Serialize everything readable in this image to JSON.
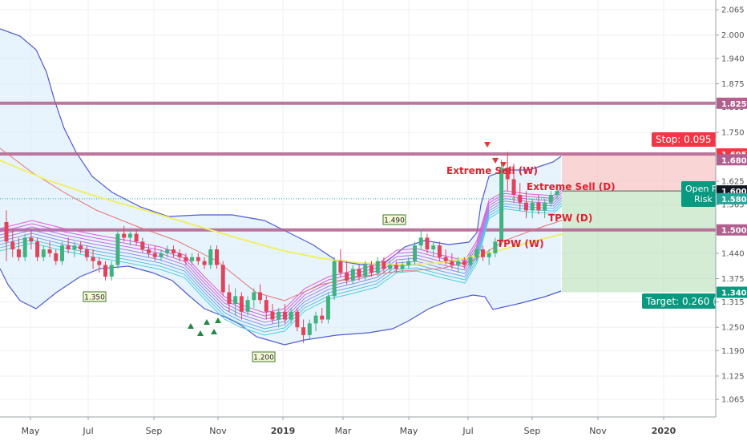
{
  "chart_data": {
    "type": "candlestick",
    "x_axis": {
      "labels": [
        "May",
        "Jul",
        "Sep",
        "Nov",
        "2019",
        "Mar",
        "May",
        "Jul",
        "Sep",
        "Nov",
        "2020"
      ]
    },
    "y_axis": {
      "ticks": [
        "2.065",
        "2.000",
        "1.940",
        "1.875",
        "1.815",
        "1.750",
        "1.690",
        "1.625",
        "1.565",
        "1.500",
        "1.440",
        "1.375",
        "1.315",
        "1.250",
        "1.190",
        "1.125",
        "1.065"
      ],
      "range": [
        1.02,
        2.09
      ]
    },
    "horizontal_levels": [
      {
        "label": "1.825",
        "value": 1.825,
        "color": "#b05f8e"
      },
      {
        "label": "1.695",
        "value": 1.695,
        "color": "#b05f8e"
      },
      {
        "label": "1.500",
        "value": 1.5,
        "color": "#b05f8e"
      }
    ],
    "price_tags": [
      {
        "label": "1.825",
        "value": 1.825,
        "color": "#b05f8e"
      },
      {
        "label": "1.695",
        "value": 1.695,
        "color": "#f23645"
      },
      {
        "label": "1.680",
        "value": 1.68,
        "color": "#b05f8e"
      },
      {
        "label": "1.600",
        "value": 1.6,
        "color": "#131722"
      },
      {
        "label": "1.580",
        "value": 1.58,
        "color": "#26a69a"
      },
      {
        "label": "1.500",
        "value": 1.5,
        "color": "#b05f8e"
      },
      {
        "label": "1.340",
        "value": 1.34,
        "color": "#089981"
      }
    ],
    "position": {
      "entry": 1.6,
      "stop": 1.695,
      "target": 1.34,
      "stop_label": "Stop: 0.095 (",
      "target_label": "Target: 0.260 (",
      "open_label": "Open P",
      "risk_label": "Risk"
    },
    "annotations": [
      {
        "text": "Extreme Sell (W)",
        "color": "#e0212f"
      },
      {
        "text": "Extreme Sell (D)",
        "color": "#e0212f"
      },
      {
        "text": "TPW (D)",
        "color": "#e0212f"
      },
      {
        "text": "TPW (W)",
        "color": "#e0212f"
      }
    ],
    "value_labels": [
      {
        "text": "1.350",
        "value": 1.35
      },
      {
        "text": "1.200",
        "value": 1.2
      },
      {
        "text": "1.490",
        "value": 1.49
      }
    ],
    "candles": [
      [
        1.52,
        1.55,
        1.42,
        1.47
      ],
      [
        1.47,
        1.5,
        1.43,
        1.45
      ],
      [
        1.45,
        1.48,
        1.42,
        1.43
      ],
      [
        1.43,
        1.49,
        1.42,
        1.48
      ],
      [
        1.48,
        1.5,
        1.45,
        1.47
      ],
      [
        1.47,
        1.48,
        1.42,
        1.43
      ],
      [
        1.43,
        1.46,
        1.42,
        1.45
      ],
      [
        1.45,
        1.47,
        1.43,
        1.44
      ],
      [
        1.44,
        1.45,
        1.41,
        1.42
      ],
      [
        1.42,
        1.47,
        1.41,
        1.46
      ],
      [
        1.46,
        1.48,
        1.44,
        1.45
      ],
      [
        1.45,
        1.47,
        1.43,
        1.46
      ],
      [
        1.46,
        1.47,
        1.44,
        1.45
      ],
      [
        1.45,
        1.46,
        1.42,
        1.43
      ],
      [
        1.43,
        1.45,
        1.4,
        1.42
      ],
      [
        1.42,
        1.43,
        1.39,
        1.41
      ],
      [
        1.41,
        1.42,
        1.37,
        1.38
      ],
      [
        1.38,
        1.42,
        1.37,
        1.41
      ],
      [
        1.41,
        1.5,
        1.4,
        1.49
      ],
      [
        1.49,
        1.51,
        1.47,
        1.48
      ],
      [
        1.48,
        1.5,
        1.46,
        1.49
      ],
      [
        1.49,
        1.5,
        1.46,
        1.47
      ],
      [
        1.47,
        1.48,
        1.44,
        1.45
      ],
      [
        1.45,
        1.46,
        1.43,
        1.44
      ],
      [
        1.44,
        1.46,
        1.42,
        1.43
      ],
      [
        1.43,
        1.45,
        1.42,
        1.44
      ],
      [
        1.44,
        1.46,
        1.43,
        1.45
      ],
      [
        1.45,
        1.46,
        1.43,
        1.44
      ],
      [
        1.44,
        1.45,
        1.42,
        1.43
      ],
      [
        1.43,
        1.44,
        1.41,
        1.42
      ],
      [
        1.42,
        1.44,
        1.41,
        1.43
      ],
      [
        1.43,
        1.44,
        1.41,
        1.42
      ],
      [
        1.42,
        1.43,
        1.4,
        1.41
      ],
      [
        1.41,
        1.46,
        1.4,
        1.45
      ],
      [
        1.45,
        1.46,
        1.4,
        1.41
      ],
      [
        1.41,
        1.42,
        1.33,
        1.34
      ],
      [
        1.34,
        1.36,
        1.29,
        1.31
      ],
      [
        1.31,
        1.35,
        1.28,
        1.33
      ],
      [
        1.33,
        1.34,
        1.27,
        1.29
      ],
      [
        1.29,
        1.33,
        1.28,
        1.32
      ],
      [
        1.32,
        1.35,
        1.3,
        1.34
      ],
      [
        1.34,
        1.36,
        1.31,
        1.32
      ],
      [
        1.32,
        1.33,
        1.27,
        1.29
      ],
      [
        1.29,
        1.31,
        1.26,
        1.27
      ],
      [
        1.27,
        1.3,
        1.25,
        1.29
      ],
      [
        1.29,
        1.31,
        1.26,
        1.27
      ],
      [
        1.27,
        1.3,
        1.26,
        1.29
      ],
      [
        1.29,
        1.3,
        1.24,
        1.25
      ],
      [
        1.25,
        1.27,
        1.21,
        1.23
      ],
      [
        1.23,
        1.27,
        1.22,
        1.26
      ],
      [
        1.26,
        1.29,
        1.24,
        1.28
      ],
      [
        1.28,
        1.3,
        1.26,
        1.27
      ],
      [
        1.27,
        1.34,
        1.26,
        1.33
      ],
      [
        1.33,
        1.43,
        1.32,
        1.42
      ],
      [
        1.42,
        1.45,
        1.38,
        1.39
      ],
      [
        1.39,
        1.42,
        1.36,
        1.37
      ],
      [
        1.37,
        1.41,
        1.36,
        1.4
      ],
      [
        1.4,
        1.41,
        1.37,
        1.38
      ],
      [
        1.38,
        1.42,
        1.37,
        1.41
      ],
      [
        1.41,
        1.42,
        1.38,
        1.39
      ],
      [
        1.39,
        1.43,
        1.38,
        1.42
      ],
      [
        1.42,
        1.43,
        1.39,
        1.4
      ],
      [
        1.4,
        1.42,
        1.39,
        1.41
      ],
      [
        1.41,
        1.42,
        1.39,
        1.4
      ],
      [
        1.4,
        1.42,
        1.39,
        1.41
      ],
      [
        1.41,
        1.43,
        1.4,
        1.42
      ],
      [
        1.42,
        1.47,
        1.41,
        1.46
      ],
      [
        1.46,
        1.5,
        1.45,
        1.48
      ],
      [
        1.48,
        1.49,
        1.44,
        1.45
      ],
      [
        1.45,
        1.47,
        1.43,
        1.46
      ],
      [
        1.46,
        1.47,
        1.42,
        1.43
      ],
      [
        1.43,
        1.45,
        1.41,
        1.42
      ],
      [
        1.42,
        1.44,
        1.4,
        1.41
      ],
      [
        1.41,
        1.43,
        1.39,
        1.42
      ],
      [
        1.42,
        1.43,
        1.4,
        1.41
      ],
      [
        1.41,
        1.44,
        1.4,
        1.43
      ],
      [
        1.43,
        1.46,
        1.42,
        1.45
      ],
      [
        1.45,
        1.46,
        1.42,
        1.43
      ],
      [
        1.43,
        1.45,
        1.41,
        1.44
      ],
      [
        1.44,
        1.48,
        1.43,
        1.47
      ],
      [
        1.47,
        1.68,
        1.46,
        1.66
      ],
      [
        1.66,
        1.7,
        1.6,
        1.63
      ],
      [
        1.63,
        1.67,
        1.57,
        1.59
      ],
      [
        1.59,
        1.62,
        1.55,
        1.57
      ],
      [
        1.57,
        1.6,
        1.53,
        1.55
      ],
      [
        1.55,
        1.58,
        1.53,
        1.57
      ],
      [
        1.57,
        1.59,
        1.54,
        1.55
      ],
      [
        1.55,
        1.58,
        1.53,
        1.57
      ],
      [
        1.57,
        1.6,
        1.56,
        1.59
      ],
      [
        1.59,
        1.61,
        1.58,
        1.6
      ]
    ]
  }
}
